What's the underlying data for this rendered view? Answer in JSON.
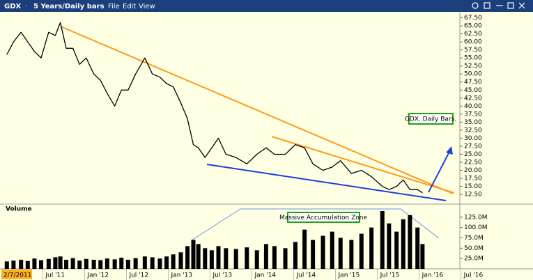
{
  "window": {
    "separator": "·",
    "timeframe": "5 Years/Daily bars",
    "menu": [
      "File",
      "Edit",
      "View"
    ]
  },
  "chart_data": [
    {
      "type": "line",
      "x": [
        2011.07,
        2011.15,
        2011.24,
        2011.32,
        2011.4,
        2011.48,
        2011.57,
        2011.65,
        2011.71,
        2011.78,
        2011.86,
        2011.94,
        2012.02,
        2012.11,
        2012.19,
        2012.27,
        2012.36,
        2012.44,
        2012.52,
        2012.61,
        2012.72,
        2012.81,
        2012.9,
        2012.98,
        2013.06,
        2013.15,
        2013.23,
        2013.3,
        2013.36,
        2013.44,
        2013.52,
        2013.6,
        2013.69,
        2013.81,
        2013.94,
        2014.06,
        2014.17,
        2014.27,
        2014.4,
        2014.52,
        2014.63,
        2014.73,
        2014.85,
        2014.96,
        2015.06,
        2015.19,
        2015.31,
        2015.43,
        2015.56,
        2015.64,
        2015.73,
        2015.81,
        2015.89,
        2015.98,
        2016.04
      ],
      "series": [
        {
          "name": "GDX",
          "color": "#000000",
          "values": [
            56,
            60,
            63,
            60,
            57,
            55,
            63,
            62,
            66,
            58,
            58,
            53,
            55,
            50,
            48,
            44,
            40,
            45,
            45,
            50,
            55,
            50,
            49,
            47,
            46,
            41,
            36,
            28,
            27,
            24,
            27,
            30,
            25,
            24,
            22,
            25,
            27,
            25,
            25,
            28,
            27,
            22,
            20,
            21,
            23,
            19,
            20,
            18,
            15,
            14,
            15,
            17,
            14,
            14,
            13
          ]
        }
      ],
      "xlim": [
        2011.03,
        2016.47
      ],
      "ylim": [
        9.7,
        68.7
      ],
      "yticks": [
        {
          "value": 12.5,
          "label": "12.50"
        },
        {
          "value": 15,
          "label": "15.00"
        },
        {
          "value": 17.5,
          "label": "17.50"
        },
        {
          "value": 20,
          "label": "20.00"
        },
        {
          "value": 22.5,
          "label": "22.50"
        },
        {
          "value": 25,
          "label": "25.00"
        },
        {
          "value": 27.5,
          "label": "27.50"
        },
        {
          "value": 30,
          "label": "30.00"
        },
        {
          "value": 32.5,
          "label": "32.50"
        },
        {
          "value": 35,
          "label": "35.00"
        },
        {
          "value": 37.5,
          "label": "37.50"
        },
        {
          "value": 40,
          "label": "40.00"
        },
        {
          "value": 42.5,
          "label": "42.50"
        },
        {
          "value": 45,
          "label": "45.00"
        },
        {
          "value": 47.5,
          "label": "47.50"
        },
        {
          "value": 50,
          "label": "50.00"
        },
        {
          "value": 52.5,
          "label": "52.50"
        },
        {
          "value": 55,
          "label": "55.00"
        },
        {
          "value": 57.5,
          "label": "57.50"
        },
        {
          "value": 60,
          "label": "60.00"
        },
        {
          "value": 62.5,
          "label": "62.50"
        },
        {
          "value": 65,
          "label": "65.00"
        },
        {
          "value": 67.5,
          "label": "67.50"
        }
      ],
      "annotation": "GDX. Daily Bars."
    },
    {
      "type": "bar",
      "title": "Volume",
      "color": "#000000",
      "x": [
        2011.07,
        2011.15,
        2011.24,
        2011.32,
        2011.4,
        2011.48,
        2011.57,
        2011.65,
        2011.71,
        2011.78,
        2011.86,
        2011.94,
        2012.02,
        2012.11,
        2012.19,
        2012.27,
        2012.36,
        2012.44,
        2012.52,
        2012.61,
        2012.72,
        2012.81,
        2012.9,
        2012.98,
        2013.06,
        2013.15,
        2013.23,
        2013.3,
        2013.36,
        2013.44,
        2013.52,
        2013.6,
        2013.69,
        2013.81,
        2013.94,
        2014.06,
        2014.17,
        2014.27,
        2014.4,
        2014.52,
        2014.63,
        2014.73,
        2014.85,
        2014.96,
        2015.06,
        2015.19,
        2015.31,
        2015.43,
        2015.56,
        2015.64,
        2015.73,
        2015.81,
        2015.89,
        2015.98,
        2016.04
      ],
      "values": [
        18,
        20,
        22,
        19,
        25,
        21,
        24,
        28,
        30,
        22,
        26,
        20,
        24,
        22,
        21,
        25,
        23,
        27,
        22,
        26,
        30,
        28,
        25,
        30,
        35,
        40,
        55,
        70,
        60,
        50,
        45,
        55,
        50,
        48,
        52,
        45,
        60,
        55,
        50,
        65,
        95,
        70,
        80,
        90,
        75,
        70,
        85,
        100,
        140,
        110,
        90,
        120,
        130,
        100,
        60
      ],
      "xlim": [
        2011.03,
        2016.47
      ],
      "ylim": [
        0,
        150
      ],
      "yticks": [
        {
          "value": 25,
          "label": "25.0M"
        },
        {
          "value": 50,
          "label": "50.0M"
        },
        {
          "value": 75,
          "label": "75.0M"
        },
        {
          "value": 100,
          "label": "100.0M"
        },
        {
          "value": 125,
          "label": "125.0M"
        }
      ],
      "xticks": [
        {
          "value": 2011.1,
          "label": "2/7/2011"
        },
        {
          "value": 2011.5,
          "label": "Jul '11"
        },
        {
          "value": 2012,
          "label": "Jan '12"
        },
        {
          "value": 2012.5,
          "label": "Jul '12"
        },
        {
          "value": 2013,
          "label": "Jan '13"
        },
        {
          "value": 2013.5,
          "label": "Jul '13"
        },
        {
          "value": 2014,
          "label": "Jan '14"
        },
        {
          "value": 2014.5,
          "label": "Jul '14"
        },
        {
          "value": 2015,
          "label": "Jan '15"
        },
        {
          "value": 2015.5,
          "label": "Jul '15"
        },
        {
          "value": 2016,
          "label": "Jan '16"
        },
        {
          "value": 2016.5,
          "label": "Jul '16"
        }
      ],
      "annotation": "Massive Accumulation Zone"
    }
  ]
}
